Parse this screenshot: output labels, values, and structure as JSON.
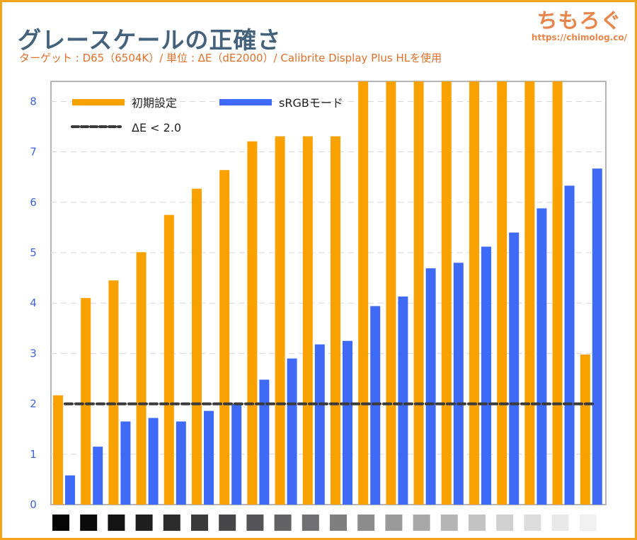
{
  "header": {
    "title": "グレースケールの正確さ",
    "subtitle": "ターゲット : D65（6504K）/ 単位 : ΔE（dE2000）/ Calibrite Display Plus HLを使用"
  },
  "logo": {
    "name": "ちもろぐ",
    "url": "https://chimolog.co/"
  },
  "colors": {
    "orange": "#f8a100",
    "blue": "#3f6af5",
    "threshold": "#3a3a3a",
    "frame": "#f5a31a",
    "title": "#45627c",
    "subtitle": "#e0702a"
  },
  "chart_data": {
    "type": "bar",
    "categories": [
      "0",
      "1",
      "2",
      "3",
      "4",
      "5",
      "6",
      "7",
      "8",
      "9",
      "10",
      "11",
      "12",
      "13",
      "14",
      "15",
      "16",
      "17",
      "18",
      "19"
    ],
    "category_swatches": [
      "#050505",
      "#0b0b0c",
      "#141415",
      "#1f1f20",
      "#2c2c2d",
      "#3a3a3b",
      "#474749",
      "#555557",
      "#636365",
      "#707072",
      "#7f7f80",
      "#8c8c8d",
      "#9a9a9b",
      "#a8a8a8",
      "#b5b5b5",
      "#c3c3c3",
      "#d0d0d0",
      "#dcdcdc",
      "#e8e8e8",
      "#f1f1f1"
    ],
    "series": [
      {
        "name": "初期設定",
        "color": "#f8a100",
        "values": [
          2.17,
          4.1,
          4.45,
          5.01,
          5.75,
          6.27,
          6.64,
          7.21,
          7.31,
          7.31,
          7.31,
          null,
          null,
          null,
          null,
          null,
          null,
          null,
          null,
          2.98
        ]
      },
      {
        "name": "sRGBモード",
        "color": "#3f6af5",
        "values": [
          0.58,
          1.15,
          1.65,
          1.72,
          1.65,
          1.86,
          2.0,
          2.48,
          2.9,
          3.18,
          3.25,
          3.94,
          4.13,
          4.69,
          4.8,
          5.12,
          5.4,
          5.88,
          6.33,
          6.67
        ]
      }
    ],
    "note_values": "null = bar exceeds the visible axis range (clipped at top)",
    "threshold": {
      "label": "ΔE < 2.0",
      "value": 2.0,
      "style": "dashed"
    },
    "yticks": [
      "0",
      "1",
      "2",
      "3",
      "4",
      "5",
      "6",
      "7",
      "8"
    ],
    "ylim": [
      0,
      8.4
    ],
    "grid": "horizontal dashed",
    "legend_position": "top-left",
    "xlabel": "",
    "ylabel": ""
  }
}
